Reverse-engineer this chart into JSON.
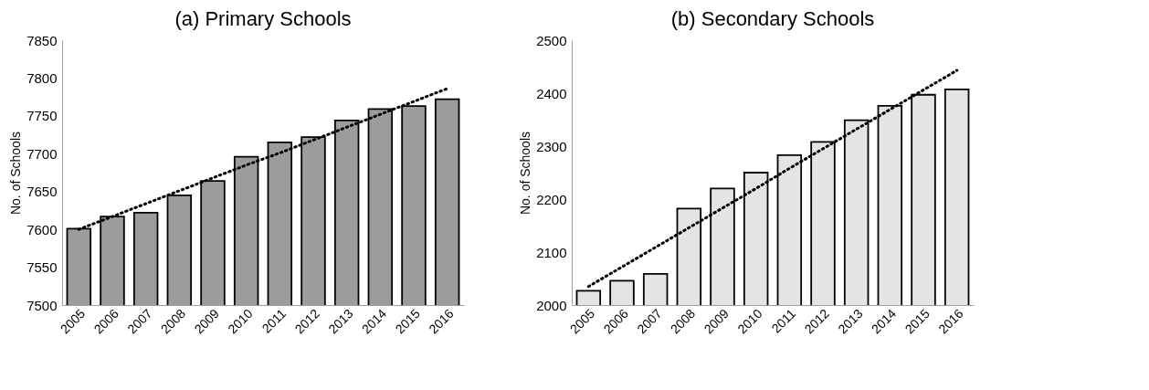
{
  "chart_data": [
    {
      "type": "bar",
      "title": "(a) Primary Schools",
      "ylabel": "No. of Schools",
      "categories": [
        "2005",
        "2006",
        "2007",
        "2008",
        "2009",
        "2010",
        "2011",
        "2012",
        "2013",
        "2014",
        "2015",
        "2016"
      ],
      "series": [
        {
          "color": "#9c9c9c",
          "values": [
            7601,
            7617,
            7622,
            7645,
            7664,
            7696,
            7715,
            7722,
            7744,
            7759,
            7763,
            7772
          ]
        },
        {
          "type": "line",
          "values": [
            7600,
            7617,
            7634,
            7651,
            7668,
            7685,
            7701,
            7718,
            7735,
            7752,
            7769,
            7786
          ],
          "color": "#000000",
          "line_style": "dotted"
        }
      ],
      "ylim": [
        7500,
        7850
      ],
      "yticks": [
        7500,
        7550,
        7600,
        7650,
        7700,
        7750,
        7800,
        7850
      ],
      "grid": false
    },
    {
      "type": "bar",
      "title": "(b) Secondary Schools",
      "ylabel": "No. of Schools",
      "categories": [
        "2005",
        "2006",
        "2007",
        "2008",
        "2009",
        "2010",
        "2011",
        "2012",
        "2013",
        "2014",
        "2015",
        "2016"
      ],
      "series": [
        {
          "color": "#e4e4e4",
          "values": [
            2027,
            2046,
            2059,
            2182,
            2220,
            2250,
            2283,
            2308,
            2349,
            2376,
            2397,
            2407
          ]
        },
        {
          "type": "line",
          "values": [
            2035,
            2072,
            2109,
            2146,
            2183,
            2220,
            2258,
            2295,
            2332,
            2369,
            2406,
            2443
          ],
          "color": "#000000",
          "line_style": "dotted"
        }
      ],
      "ylim": [
        2000,
        2500
      ],
      "yticks": [
        2000,
        2100,
        2200,
        2300,
        2400,
        2500
      ],
      "grid": false
    }
  ]
}
